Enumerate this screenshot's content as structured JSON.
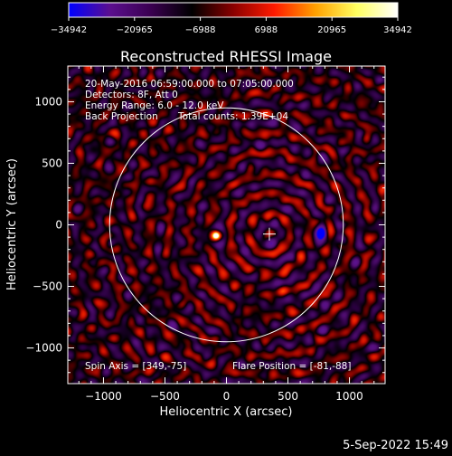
{
  "chart_data": {
    "type": "heatmap",
    "title": "Reconstructed RHESSI Image",
    "xlabel": "Heliocentric X (arcsec)",
    "ylabel": "Heliocentric Y (arcsec)",
    "xlim": [
      -1290,
      1290
    ],
    "ylim": [
      -1290,
      1290
    ],
    "xticks": [
      -1000,
      -500,
      0,
      500,
      1000
    ],
    "yticks": [
      -1000,
      -500,
      0,
      500,
      1000
    ],
    "xtick_labels": [
      "−1000",
      "−500",
      "0",
      "500",
      "1000"
    ],
    "ytick_labels": [
      "−1000",
      "−500",
      "0",
      "500",
      "1000"
    ],
    "colorbar": {
      "min": -34942,
      "max": 34942,
      "ticks": [
        -34942,
        -20965,
        -6988,
        6988,
        20965,
        34942
      ],
      "tick_labels": [
        "−34942",
        "−20965",
        "−6988",
        "6988",
        "20965",
        "34942"
      ],
      "colors": [
        "#0000ff",
        "#5b0f8f",
        "#3a0050",
        "#000000",
        "#8a0000",
        "#ff1a00",
        "#ffa000",
        "#ffff60",
        "#ffffff"
      ]
    },
    "annotations": [
      "20-May-2016 06:59:00.000 to 07:05:00.000",
      "Detectors: 8F, Att 0",
      "Energy Range: 6.0 - 12.0 keV",
      "Back Projection",
      "Total counts: 1.39E+04"
    ],
    "spin_axis_text": "Spin Axis = [349,-75]",
    "flare_position_text": "Flare Position = [-81,-88]",
    "solar_limb_radius": 950,
    "spin_axis": [
      349,
      -75
    ],
    "flare_position": [
      -81,
      -88
    ],
    "sources": [
      {
        "kind": "peak_positive",
        "x": -81,
        "y": -88
      },
      {
        "kind": "peak_negative",
        "x": 770,
        "y": -75
      }
    ]
  },
  "footer": {
    "date_text": "5-Sep-2022 15:49"
  }
}
